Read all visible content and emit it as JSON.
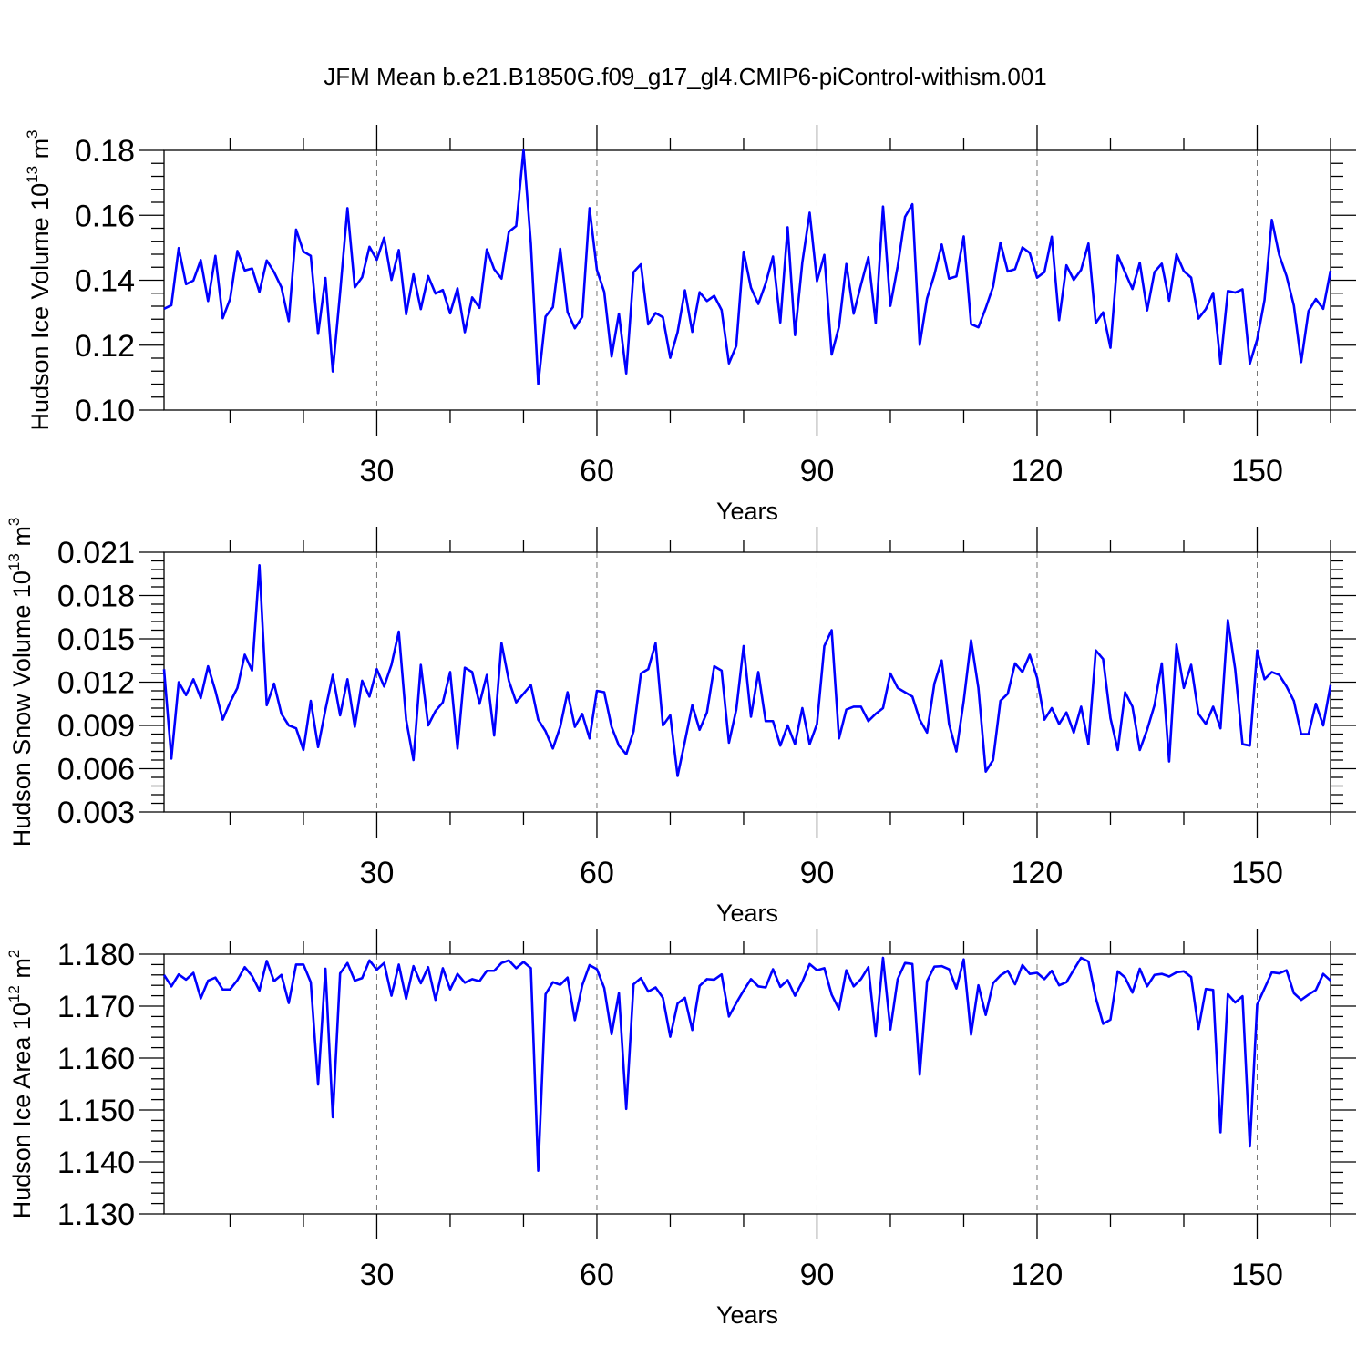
{
  "title": "JFM Mean b.e21.B1850G.f09_g17_gl4.CMIP6-piControl-withism.001",
  "series_color": "#0000ff",
  "chart_data": [
    {
      "type": "line",
      "name": "ice_volume",
      "ylabel": "Hudson Ice Volume 10",
      "ylabel_exp": "13",
      "ylabel_unit": "m",
      "ylabel_unit_exp": "3",
      "xlabel": "Years",
      "xlim": [
        1,
        160
      ],
      "ylim": [
        0.1,
        0.18
      ],
      "grid_x": [
        30,
        60,
        90,
        120,
        150
      ],
      "xticks": [
        "30",
        "60",
        "90",
        "120",
        "150"
      ],
      "xtick_values": [
        30,
        60,
        90,
        120,
        150
      ],
      "yticks": [
        "0.10",
        "0.12",
        "0.14",
        "0.16",
        "0.18"
      ],
      "ytick_values": [
        0.1,
        0.12,
        0.14,
        0.16,
        0.18
      ],
      "x_start": 1,
      "values": [
        0.1312,
        0.1323,
        0.1499,
        0.1388,
        0.1399,
        0.1462,
        0.1336,
        0.1475,
        0.1283,
        0.1342,
        0.149,
        0.143,
        0.1436,
        0.1364,
        0.1461,
        0.1425,
        0.1378,
        0.1274,
        0.1556,
        0.1488,
        0.1475,
        0.1235,
        0.1407,
        0.1119,
        0.1362,
        0.1622,
        0.1378,
        0.1409,
        0.1503,
        0.1463,
        0.1531,
        0.1401,
        0.1493,
        0.1295,
        0.1418,
        0.1311,
        0.1413,
        0.1359,
        0.137,
        0.1298,
        0.1375,
        0.124,
        0.1347,
        0.1315,
        0.1495,
        0.1434,
        0.1405,
        0.1549,
        0.1567,
        0.1802,
        0.1513,
        0.108,
        0.1288,
        0.1317,
        0.1497,
        0.1302,
        0.1252,
        0.1287,
        0.1622,
        0.1432,
        0.1364,
        0.1165,
        0.1297,
        0.1113,
        0.1425,
        0.1449,
        0.1264,
        0.1299,
        0.1286,
        0.1161,
        0.124,
        0.1369,
        0.1241,
        0.1363,
        0.1336,
        0.1352,
        0.1308,
        0.1144,
        0.1198,
        0.1488,
        0.1377,
        0.1327,
        0.139,
        0.1473,
        0.127,
        0.1563,
        0.1231,
        0.1455,
        0.1608,
        0.1397,
        0.1478,
        0.1171,
        0.1257,
        0.145,
        0.1297,
        0.1386,
        0.1471,
        0.1268,
        0.1627,
        0.1321,
        0.1443,
        0.1595,
        0.1634,
        0.1201,
        0.1344,
        0.1417,
        0.151,
        0.1405,
        0.1412,
        0.1535,
        0.1265,
        0.1255,
        0.1314,
        0.138,
        0.1516,
        0.1427,
        0.1434,
        0.1501,
        0.1484,
        0.1408,
        0.1425,
        0.1534,
        0.1277,
        0.1446,
        0.1401,
        0.1432,
        0.1513,
        0.1268,
        0.1301,
        0.1192,
        0.1476,
        0.1424,
        0.1373,
        0.1454,
        0.1307,
        0.1425,
        0.1451,
        0.1337,
        0.148,
        0.1428,
        0.1408,
        0.1282,
        0.1311,
        0.1361,
        0.1143,
        0.1367,
        0.1362,
        0.1372,
        0.1143,
        0.1218,
        0.1339,
        0.1586,
        0.1478,
        0.1413,
        0.1322,
        0.1148,
        0.1305,
        0.1342,
        0.1312,
        0.1429
      ]
    },
    {
      "type": "line",
      "name": "snow_volume",
      "ylabel": "Hudson Snow Volume 10",
      "ylabel_exp": "13",
      "ylabel_unit": "m",
      "ylabel_unit_exp": "3",
      "xlabel": "Years",
      "xlim": [
        1,
        160
      ],
      "ylim": [
        0.003,
        0.021
      ],
      "grid_x": [
        30,
        60,
        90,
        120,
        150
      ],
      "xticks": [
        "30",
        "60",
        "90",
        "120",
        "150"
      ],
      "xtick_values": [
        30,
        60,
        90,
        120,
        150
      ],
      "yticks": [
        "0.003",
        "0.006",
        "0.009",
        "0.012",
        "0.015",
        "0.018",
        "0.021"
      ],
      "ytick_values": [
        0.003,
        0.006,
        0.009,
        0.012,
        0.015,
        0.018,
        0.021
      ],
      "x_start": 1,
      "values": [
        0.0129,
        0.0067,
        0.012,
        0.0111,
        0.0122,
        0.0109,
        0.0131,
        0.0114,
        0.0094,
        0.0106,
        0.0116,
        0.0139,
        0.0128,
        0.0201,
        0.0104,
        0.0119,
        0.0098,
        0.009,
        0.0088,
        0.0073,
        0.0107,
        0.0075,
        0.0101,
        0.0125,
        0.0097,
        0.0122,
        0.0089,
        0.0121,
        0.011,
        0.0129,
        0.0117,
        0.0132,
        0.0155,
        0.0094,
        0.0066,
        0.0132,
        0.009,
        0.01,
        0.0106,
        0.0127,
        0.0074,
        0.013,
        0.0127,
        0.0105,
        0.0125,
        0.0083,
        0.0147,
        0.0121,
        0.0106,
        0.0112,
        0.0118,
        0.0094,
        0.0086,
        0.0074,
        0.0089,
        0.0113,
        0.0089,
        0.0098,
        0.0081,
        0.0114,
        0.0113,
        0.0089,
        0.0076,
        0.007,
        0.0086,
        0.0126,
        0.0129,
        0.0147,
        0.009,
        0.0097,
        0.0055,
        0.0079,
        0.0104,
        0.0087,
        0.0099,
        0.0131,
        0.0128,
        0.0078,
        0.0101,
        0.0145,
        0.0096,
        0.0127,
        0.0093,
        0.0093,
        0.0076,
        0.009,
        0.0077,
        0.0102,
        0.0077,
        0.0091,
        0.0145,
        0.0156,
        0.0081,
        0.0101,
        0.0103,
        0.0103,
        0.0093,
        0.0098,
        0.0102,
        0.0126,
        0.0116,
        0.0113,
        0.011,
        0.0094,
        0.0085,
        0.0119,
        0.0135,
        0.0091,
        0.0072,
        0.0107,
        0.0149,
        0.0116,
        0.0058,
        0.0066,
        0.0107,
        0.0112,
        0.0133,
        0.0127,
        0.0139,
        0.0123,
        0.0094,
        0.0102,
        0.0091,
        0.0099,
        0.0085,
        0.0103,
        0.0077,
        0.0142,
        0.0136,
        0.0095,
        0.0073,
        0.0113,
        0.0103,
        0.0073,
        0.0087,
        0.0104,
        0.0133,
        0.0065,
        0.0146,
        0.0116,
        0.0132,
        0.0098,
        0.0091,
        0.0103,
        0.0088,
        0.0163,
        0.0129,
        0.0077,
        0.0076,
        0.0142,
        0.0122,
        0.0127,
        0.0125,
        0.0117,
        0.0107,
        0.0084,
        0.0084,
        0.0105,
        0.009,
        0.0118
      ]
    },
    {
      "type": "line",
      "name": "ice_area",
      "ylabel": "Hudson Ice Area 10",
      "ylabel_exp": "12",
      "ylabel_unit": "m",
      "ylabel_unit_exp": "2",
      "xlabel": "Years",
      "xlim": [
        1,
        160
      ],
      "ylim": [
        1.13,
        1.18
      ],
      "grid_x": [
        30,
        60,
        90,
        120,
        150
      ],
      "xticks": [
        "30",
        "60",
        "90",
        "120",
        "150"
      ],
      "xtick_values": [
        30,
        60,
        90,
        120,
        150
      ],
      "yticks": [
        "1.130",
        "1.140",
        "1.150",
        "1.160",
        "1.170",
        "1.180"
      ],
      "ytick_values": [
        1.13,
        1.14,
        1.15,
        1.16,
        1.17,
        1.18
      ],
      "x_start": 1,
      "values": [
        1.176,
        1.1738,
        1.1761,
        1.1751,
        1.1764,
        1.1715,
        1.1749,
        1.1755,
        1.1732,
        1.1732,
        1.175,
        1.1775,
        1.1758,
        1.173,
        1.1787,
        1.1748,
        1.176,
        1.1706,
        1.178,
        1.178,
        1.1746,
        1.1549,
        1.1772,
        1.1486,
        1.1763,
        1.1783,
        1.1749,
        1.1754,
        1.1788,
        1.177,
        1.1783,
        1.172,
        1.178,
        1.1714,
        1.1777,
        1.1744,
        1.1775,
        1.1712,
        1.1773,
        1.1732,
        1.1762,
        1.1745,
        1.1752,
        1.1748,
        1.1768,
        1.1768,
        1.1783,
        1.1788,
        1.1773,
        1.1785,
        1.1773,
        1.1383,
        1.1723,
        1.1746,
        1.1741,
        1.1755,
        1.1673,
        1.174,
        1.1779,
        1.1771,
        1.1735,
        1.1646,
        1.1725,
        1.1502,
        1.1742,
        1.1754,
        1.1728,
        1.1736,
        1.1716,
        1.1641,
        1.1705,
        1.1716,
        1.1654,
        1.1739,
        1.1752,
        1.1751,
        1.1761,
        1.168,
        1.1706,
        1.173,
        1.1752,
        1.1738,
        1.1736,
        1.1771,
        1.1737,
        1.175,
        1.172,
        1.1747,
        1.1781,
        1.1769,
        1.1773,
        1.1722,
        1.1694,
        1.1769,
        1.1738,
        1.1752,
        1.1775,
        1.1642,
        1.1793,
        1.1655,
        1.1752,
        1.1783,
        1.1781,
        1.1568,
        1.1748,
        1.1776,
        1.1777,
        1.1771,
        1.1734,
        1.179,
        1.1645,
        1.174,
        1.1683,
        1.1744,
        1.1759,
        1.1768,
        1.1742,
        1.1779,
        1.1762,
        1.1764,
        1.1752,
        1.1768,
        1.174,
        1.1746,
        1.177,
        1.1793,
        1.1786,
        1.1716,
        1.1666,
        1.1674,
        1.1767,
        1.1755,
        1.1726,
        1.1772,
        1.1738,
        1.176,
        1.1762,
        1.1757,
        1.1765,
        1.1767,
        1.1756,
        1.1656,
        1.1733,
        1.1731,
        1.1457,
        1.1723,
        1.1707,
        1.1719,
        1.143,
        1.1703,
        1.1734,
        1.1765,
        1.1763,
        1.1769,
        1.1725,
        1.1712,
        1.1722,
        1.1731,
        1.1762,
        1.1749
      ]
    }
  ]
}
